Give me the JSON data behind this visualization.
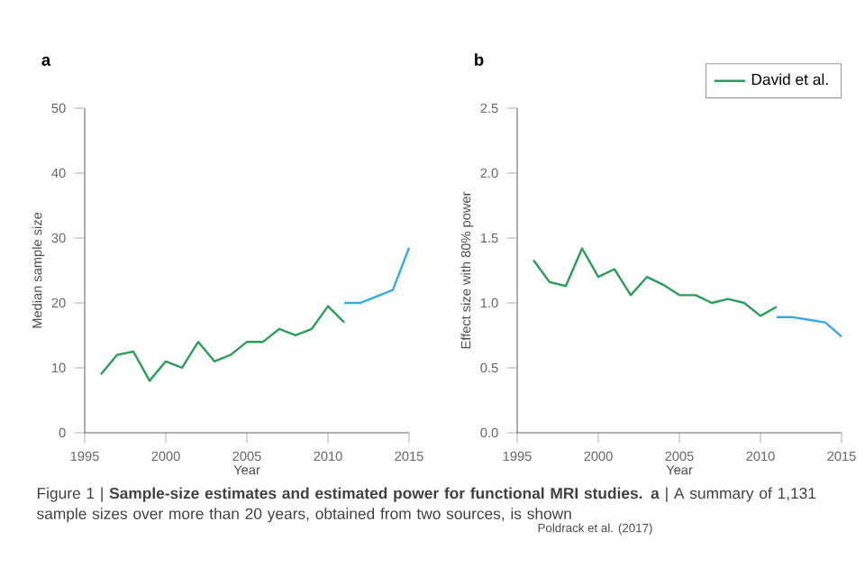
{
  "chart_data": [
    {
      "type": "line",
      "title": "a",
      "xlabel": "Year",
      "ylabel": "Median sample size",
      "xlim": [
        1995,
        2015
      ],
      "xticks": [
        1995,
        2000,
        2005,
        2010,
        2015
      ],
      "ylim": [
        0,
        50
      ],
      "yticks": [
        0,
        10,
        20,
        30,
        40,
        50
      ],
      "line_style": "solid",
      "series": [
        {
          "color": "#2e9a5c",
          "x": [
            1996,
            1997,
            1998,
            1999,
            2000,
            2001,
            2002,
            2003,
            2004,
            2005,
            2006,
            2007,
            2008,
            2009,
            2010,
            2011
          ],
          "values": [
            9,
            12,
            12.5,
            8,
            11,
            10,
            14,
            11,
            12,
            14,
            14,
            16,
            15,
            16,
            19.5,
            17
          ]
        },
        {
          "color": "#3aa9dc",
          "x": [
            2011,
            2012,
            2013,
            2014,
            2015
          ],
          "values": [
            20,
            20,
            21,
            22,
            28.5
          ]
        }
      ],
      "annotations": [
        "Figure 1 | **Sample-size estimates and estimated power for functional MRI studies. a** | A summary of 1,131 sample sizes over more than 20 years, obtained from two sources, is shown",
        "Poldrack et al. (2017)"
      ]
    },
    {
      "type": "line",
      "title": "b",
      "xlabel": "Year",
      "ylabel": "Effect size with 80% power",
      "xlim": [
        1995,
        2015
      ],
      "xticks": [
        1995,
        2000,
        2005,
        2010,
        2015
      ],
      "ylim": [
        0,
        2.5
      ],
      "yticks": [
        {
          "value": 0,
          "label": "0.0"
        },
        0.5,
        {
          "value": 1,
          "label": "1.0"
        },
        1.5,
        {
          "value": 2,
          "label": "2.0"
        },
        2.5
      ],
      "line_style": "solid",
      "legend": "top right",
      "series": [
        {
          "color": "#3aa9dc",
          "x": [
            2011,
            2012,
            2013,
            2014,
            2015
          ],
          "values": [
            0.89,
            0.89,
            0.87,
            0.85,
            0.74
          ]
        },
        {
          "name": "David et al.",
          "color": "#2e9a5c",
          "x": [
            1996,
            1997,
            1998,
            1999,
            2000,
            2001,
            2002,
            2003,
            2004,
            2005,
            2006,
            2007,
            2008,
            2009,
            2010,
            2011
          ],
          "values": [
            1.33,
            1.16,
            1.13,
            1.42,
            1.2,
            1.26,
            1.06,
            1.2,
            1.14,
            1.06,
            1.06,
            1.0,
            1.03,
            1.0,
            0.9,
            0.97
          ]
        }
      ]
    }
  ]
}
